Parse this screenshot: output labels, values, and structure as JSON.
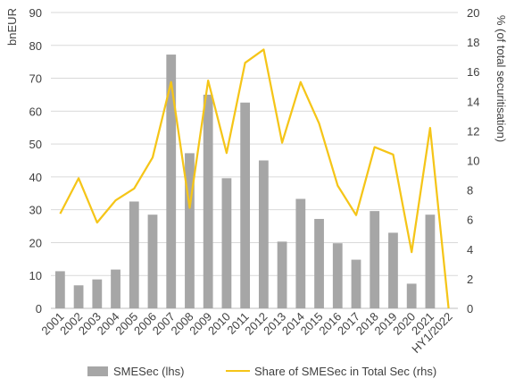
{
  "chart_data": {
    "type": "bar",
    "categories": [
      "2001",
      "2002",
      "2003",
      "2004",
      "2005",
      "2006",
      "2007",
      "2008",
      "2009",
      "2010",
      "2011",
      "2012",
      "2013",
      "2014",
      "2015",
      "2016",
      "2017",
      "2018",
      "2019",
      "2020",
      "2021",
      "HY1/2022"
    ],
    "series": [
      {
        "name": "SMESec (lhs)",
        "type": "bar",
        "axis": "left",
        "color": "#a6a6a6",
        "values": [
          11.3,
          7.0,
          8.8,
          11.8,
          32.5,
          28.5,
          77.2,
          47.2,
          65.0,
          39.6,
          62.6,
          45.0,
          20.3,
          33.3,
          27.2,
          19.8,
          14.8,
          29.6,
          23.0,
          7.5,
          28.5,
          0
        ]
      },
      {
        "name": "Share of SMESec in Total Sec (rhs)",
        "type": "line",
        "axis": "right",
        "color": "#f5c518",
        "values": [
          6.4,
          8.8,
          5.8,
          7.3,
          8.1,
          10.2,
          15.3,
          6.8,
          15.4,
          10.5,
          16.6,
          17.5,
          11.2,
          15.3,
          12.5,
          8.3,
          6.3,
          10.9,
          10.4,
          3.8,
          12.2,
          0
        ]
      }
    ],
    "ylabel_left": "bnEUR",
    "ylabel_right": "% (of total securitisation)",
    "ylim_left": [
      0,
      90
    ],
    "ylim_right": [
      0,
      20
    ],
    "yticks_left": [
      0,
      10,
      20,
      30,
      40,
      50,
      60,
      70,
      80,
      90
    ],
    "yticks_right": [
      0,
      2,
      4,
      6,
      8,
      10,
      12,
      14,
      16,
      18,
      20
    ],
    "grid": true,
    "legend_position": "bottom"
  }
}
